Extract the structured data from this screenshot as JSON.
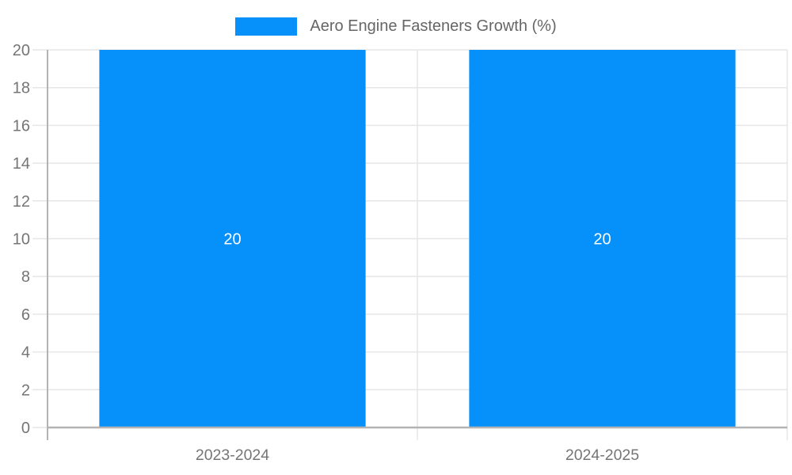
{
  "chart_data": {
    "type": "bar",
    "title": "Aero Engine Fasteners Growth (%)",
    "legend_position": "top",
    "categories": [
      "2023-2024",
      "2024-2025"
    ],
    "series": [
      {
        "name": "Aero Engine Fasteners Growth (%)",
        "values": [
          20,
          20
        ]
      }
    ],
    "bar_value_labels": [
      "20",
      "20"
    ],
    "ylim": [
      0,
      20
    ],
    "ytick_step": 2,
    "yticks": [
      0,
      2,
      4,
      6,
      8,
      10,
      12,
      14,
      16,
      18,
      20
    ],
    "grid": true,
    "colors": {
      "bar": "#0690fa",
      "axis_text": "#757575",
      "gridline": "#e6e6e6",
      "axis_line": "#b3b3b3",
      "bar_label_text": "#ffffff",
      "legend_text": "#666666",
      "background": "#ffffff"
    }
  }
}
